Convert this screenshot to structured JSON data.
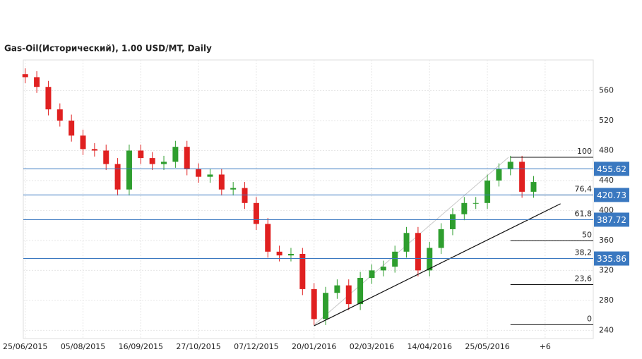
{
  "chart_data": {
    "type": "candlestick",
    "title": "Gas-Oil(Исторический), 1.00 USD/MT, Daily",
    "x": [
      0,
      6,
      12,
      18,
      24,
      30,
      36,
      42,
      48,
      54,
      60,
      66,
      72,
      78,
      84,
      90,
      96,
      102,
      108,
      114,
      120,
      126,
      132,
      138,
      144,
      150,
      156,
      162,
      168,
      174,
      180,
      186,
      192,
      198,
      204,
      210,
      216,
      222,
      228,
      234,
      240,
      246,
      252,
      258,
      264
    ],
    "open": [
      582,
      578,
      565,
      535,
      520,
      500,
      482,
      480,
      462,
      428,
      480,
      470,
      462,
      465,
      485,
      455,
      445,
      448,
      428,
      430,
      410,
      382,
      345,
      340,
      342,
      295,
      255,
      290,
      300,
      275,
      310,
      320,
      325,
      345,
      370,
      320,
      350,
      375,
      395,
      410,
      410,
      440,
      455,
      465,
      425
    ],
    "high": [
      590,
      586,
      573,
      543,
      528,
      508,
      490,
      488,
      470,
      488,
      488,
      478,
      473,
      493,
      493,
      463,
      456,
      456,
      438,
      438,
      418,
      390,
      353,
      350,
      350,
      303,
      298,
      308,
      308,
      318,
      328,
      333,
      353,
      378,
      378,
      358,
      383,
      403,
      418,
      418,
      448,
      463,
      473,
      473,
      446
    ],
    "low": [
      570,
      557,
      527,
      512,
      492,
      474,
      472,
      454,
      420,
      420,
      462,
      454,
      454,
      457,
      447,
      437,
      437,
      420,
      420,
      402,
      374,
      337,
      332,
      332,
      287,
      247,
      247,
      282,
      267,
      267,
      302,
      312,
      317,
      337,
      312,
      312,
      342,
      367,
      387,
      402,
      402,
      432,
      447,
      417,
      417
    ],
    "close": [
      578,
      565,
      535,
      520,
      500,
      482,
      480,
      462,
      428,
      480,
      470,
      462,
      465,
      485,
      455,
      445,
      448,
      428,
      430,
      410,
      382,
      345,
      340,
      342,
      295,
      255,
      290,
      300,
      275,
      310,
      320,
      325,
      345,
      370,
      320,
      350,
      375,
      395,
      410,
      410,
      440,
      455,
      465,
      425,
      438
    ],
    "up_color": "#2e9e2e",
    "down_color": "#e02020",
    "xlim": [
      -1,
      295
    ],
    "ylim": [
      229,
      601
    ],
    "xticks": [
      {
        "value": 0,
        "label": "25/06/2015"
      },
      {
        "value": 30,
        "label": "05/08/2015"
      },
      {
        "value": 60,
        "label": "16/09/2015"
      },
      {
        "value": 90,
        "label": "27/10/2015"
      },
      {
        "value": 120,
        "label": "07/12/2015"
      },
      {
        "value": 150,
        "label": "20/01/2016"
      },
      {
        "value": 180,
        "label": "02/03/2016"
      },
      {
        "value": 210,
        "label": "14/04/2016"
      },
      {
        "value": 240,
        "label": "25/05/2016"
      },
      {
        "value": 270,
        "label": "+6"
      }
    ],
    "yticks": [
      240,
      280,
      320,
      360,
      400,
      440,
      480,
      520,
      560
    ],
    "grid": true,
    "price_lines": {
      "color": "#3a78c0",
      "values": [
        455.62,
        420.73,
        387.72,
        335.86
      ]
    },
    "fib_levels": {
      "x_start": 252,
      "labels": [
        "100",
        "76,4",
        "61,8",
        "50",
        "38,2",
        "23,6",
        "0"
      ],
      "values": [
        471,
        420.7,
        387.7,
        359.5,
        335.9,
        301,
        247.5
      ]
    },
    "trendline": {
      "x": [
        150,
        278
      ],
      "values": [
        246,
        409
      ]
    },
    "fib_guide": {
      "x": [
        150,
        251
      ],
      "values": [
        247,
        471
      ]
    }
  }
}
